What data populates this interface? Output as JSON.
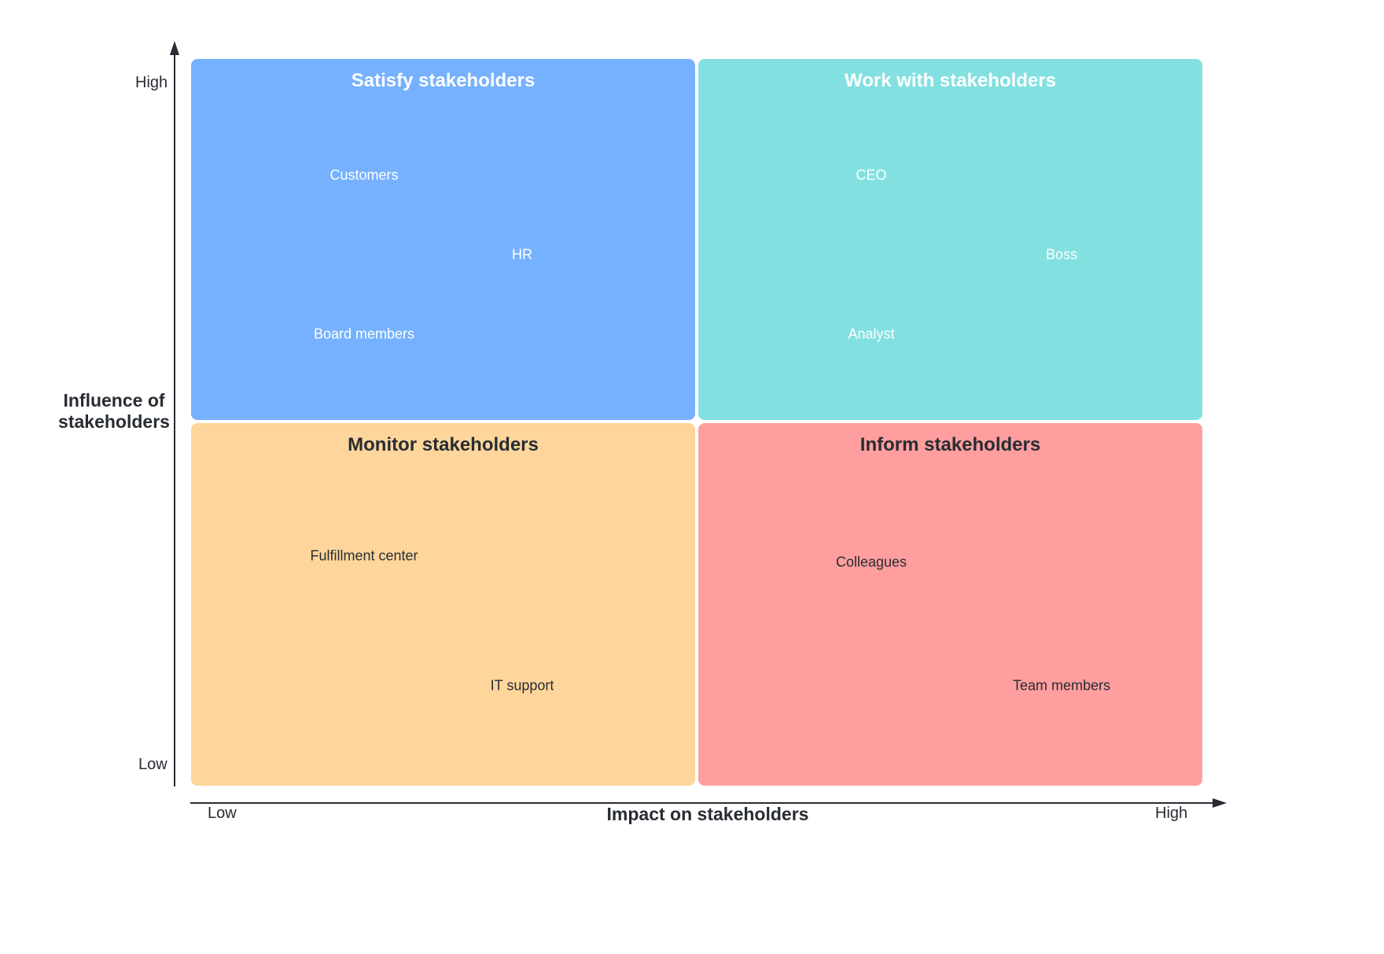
{
  "colors": {
    "satisfy": "#75b1fe",
    "work_with": "#83e0e0",
    "monitor": "#fed69b",
    "inform": "#fe9e9e",
    "axis": "#282c33"
  },
  "quadrants": {
    "satisfy": {
      "title": "Satisfy stakeholders",
      "items": [
        "Customers",
        "HR",
        "Board members"
      ]
    },
    "work_with": {
      "title": "Work with stakeholders",
      "items": [
        "CEO",
        "Boss",
        "Analyst"
      ]
    },
    "monitor": {
      "title": "Monitor stakeholders",
      "items": [
        "Fulfillment center",
        "IT support"
      ]
    },
    "inform": {
      "title": "Inform stakeholders",
      "items": [
        "Colleagues",
        "Team members"
      ]
    }
  },
  "y_axis": {
    "title_line1": "Influence of",
    "title_line2": "stakeholders",
    "high": "High",
    "low": "Low"
  },
  "x_axis": {
    "title": "Impact on stakeholders",
    "low": "Low",
    "high": "High"
  }
}
